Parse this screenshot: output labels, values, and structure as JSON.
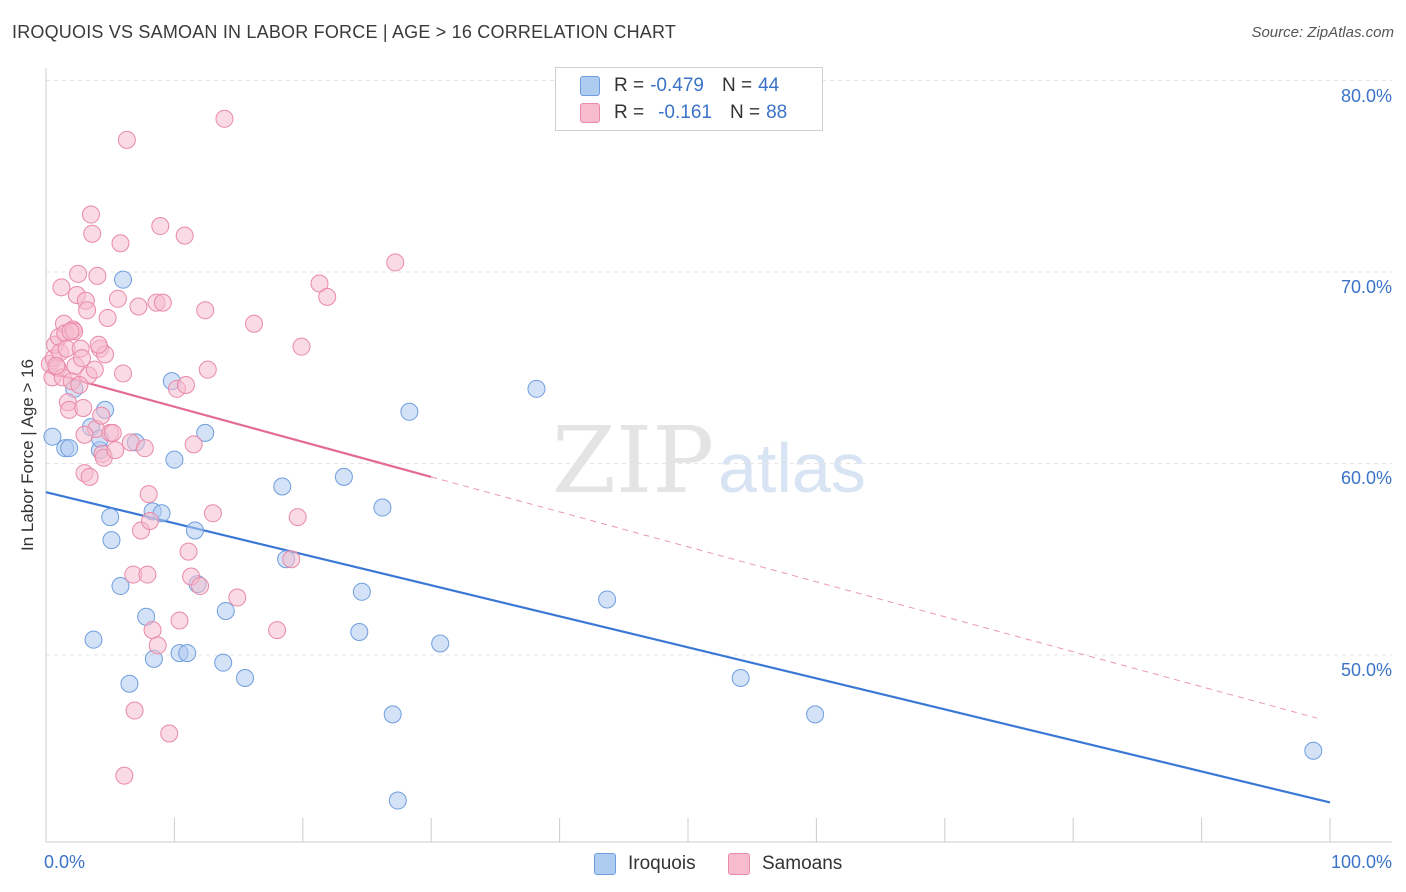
{
  "header": {
    "title": "IROQUOIS VS SAMOAN IN LABOR FORCE | AGE > 16 CORRELATION CHART",
    "source": "Source: ZipAtlas.com"
  },
  "legend": {
    "rows": [
      {
        "r_label": "R =",
        "r_value": "-0.479",
        "n_label": "N =",
        "n_value": "44",
        "color": "#aecbf0",
        "border": "#6f9ede"
      },
      {
        "r_label": "R =",
        "r_value": "-0.161",
        "n_label": "N =",
        "n_value": "88",
        "color": "#f6bccd",
        "border": "#e98aa8"
      }
    ]
  },
  "bottom_legend": {
    "iroquois": "Iroquois",
    "samoans": "Samoans"
  },
  "watermark": {
    "zip": "ZIP",
    "atlas": "atlas"
  },
  "colors": {
    "blue_fill": "#aecbf0",
    "blue_stroke": "#6f9ede",
    "blue_line": "#3b78d6",
    "pink_fill": "#f6bccd",
    "pink_stroke": "#e98aa8",
    "pink_line": "#e46b92",
    "tick_text": "#3b73c8",
    "grid": "#e5e5e5"
  },
  "chart_data": {
    "type": "scatter",
    "title": "IROQUOIS VS SAMOAN IN LABOR FORCE | AGE > 16 CORRELATION CHART",
    "xlabel": "",
    "ylabel": "In Labor Force | Age > 16",
    "xlim": [
      0,
      100
    ],
    "ylim": [
      40,
      82
    ],
    "x_tick_labels": [
      "0.0%",
      "100.0%"
    ],
    "y_ticks": [
      50,
      60,
      70,
      80
    ],
    "y_tick_labels": [
      "50.0%",
      "60.0%",
      "70.0%",
      "80.0%"
    ],
    "grid": true,
    "series": [
      {
        "name": "Iroquois",
        "r": -0.479,
        "n": 44,
        "trend": {
          "x": [
            0,
            100
          ],
          "y": [
            58.5,
            42.3
          ],
          "style": "solid"
        },
        "points": [
          [
            0.5,
            61.4
          ],
          [
            1.5,
            60.8
          ],
          [
            1.8,
            60.8
          ],
          [
            4.2,
            60.7
          ],
          [
            3.5,
            61.9
          ],
          [
            4.6,
            62.8
          ],
          [
            2.2,
            63.9
          ],
          [
            4.2,
            61.3
          ],
          [
            6.0,
            69.6
          ],
          [
            5.0,
            57.2
          ],
          [
            5.1,
            56.0
          ],
          [
            5.8,
            53.6
          ],
          [
            7.0,
            61.1
          ],
          [
            8.3,
            57.5
          ],
          [
            9.0,
            57.4
          ],
          [
            7.8,
            52.0
          ],
          [
            3.7,
            50.8
          ],
          [
            6.5,
            48.5
          ],
          [
            8.4,
            49.8
          ],
          [
            10.4,
            50.1
          ],
          [
            11.0,
            50.1
          ],
          [
            9.8,
            64.3
          ],
          [
            10.0,
            60.2
          ],
          [
            12.4,
            61.6
          ],
          [
            11.6,
            56.5
          ],
          [
            11.8,
            53.7
          ],
          [
            14.0,
            52.3
          ],
          [
            13.8,
            49.6
          ],
          [
            15.5,
            48.8
          ],
          [
            18.4,
            58.8
          ],
          [
            18.7,
            55.0
          ],
          [
            23.2,
            59.3
          ],
          [
            24.6,
            53.3
          ],
          [
            24.4,
            51.2
          ],
          [
            26.2,
            57.7
          ],
          [
            27.0,
            46.9
          ],
          [
            27.4,
            42.4
          ],
          [
            28.3,
            62.7
          ],
          [
            30.7,
            50.6
          ],
          [
            38.2,
            63.9
          ],
          [
            43.7,
            52.9
          ],
          [
            54.1,
            48.8
          ],
          [
            59.9,
            46.9
          ],
          [
            98.7,
            45.0
          ]
        ]
      },
      {
        "name": "Samoans",
        "r": -0.161,
        "n": 88,
        "trend": {
          "x": [
            0,
            30
          ],
          "y": [
            64.8,
            59.3
          ],
          "style": "solid",
          "extended_x": [
            30,
            99
          ],
          "extended_y": [
            59.3,
            46.7
          ],
          "extended_style": "dashed"
        },
        "points": [
          [
            0.3,
            65.2
          ],
          [
            0.5,
            64.5
          ],
          [
            0.6,
            65.5
          ],
          [
            0.7,
            66.2
          ],
          [
            0.9,
            65.0
          ],
          [
            1.0,
            66.6
          ],
          [
            1.1,
            65.8
          ],
          [
            1.3,
            64.5
          ],
          [
            1.2,
            69.2
          ],
          [
            1.4,
            67.3
          ],
          [
            1.5,
            66.8
          ],
          [
            1.6,
            66.0
          ],
          [
            1.7,
            63.2
          ],
          [
            1.8,
            62.8
          ],
          [
            2.0,
            64.3
          ],
          [
            2.1,
            67.0
          ],
          [
            2.2,
            66.9
          ],
          [
            2.3,
            65.1
          ],
          [
            2.4,
            68.8
          ],
          [
            2.5,
            69.9
          ],
          [
            2.7,
            66.0
          ],
          [
            2.8,
            65.5
          ],
          [
            2.9,
            62.9
          ],
          [
            3.0,
            59.5
          ],
          [
            3.1,
            68.5
          ],
          [
            3.2,
            68.0
          ],
          [
            3.3,
            64.6
          ],
          [
            3.4,
            59.3
          ],
          [
            3.5,
            73.0
          ],
          [
            3.6,
            72.0
          ],
          [
            3.8,
            64.9
          ],
          [
            3.9,
            61.8
          ],
          [
            4.0,
            69.8
          ],
          [
            4.2,
            66.0
          ],
          [
            4.3,
            62.5
          ],
          [
            4.4,
            60.5
          ],
          [
            4.5,
            60.3
          ],
          [
            4.6,
            65.7
          ],
          [
            4.8,
            67.6
          ],
          [
            5.0,
            61.6
          ],
          [
            5.2,
            61.6
          ],
          [
            5.4,
            60.7
          ],
          [
            5.6,
            68.6
          ],
          [
            5.8,
            71.5
          ],
          [
            6.0,
            64.7
          ],
          [
            6.3,
            76.9
          ],
          [
            6.6,
            61.1
          ],
          [
            6.8,
            54.2
          ],
          [
            6.9,
            47.1
          ],
          [
            7.2,
            68.2
          ],
          [
            7.4,
            56.5
          ],
          [
            7.7,
            60.8
          ],
          [
            7.9,
            54.2
          ],
          [
            8.0,
            58.4
          ],
          [
            8.1,
            57.0
          ],
          [
            8.3,
            51.3
          ],
          [
            8.6,
            68.4
          ],
          [
            8.7,
            50.5
          ],
          [
            8.9,
            72.4
          ],
          [
            9.1,
            68.4
          ],
          [
            9.6,
            45.9
          ],
          [
            10.2,
            63.9
          ],
          [
            10.4,
            51.8
          ],
          [
            10.8,
            71.9
          ],
          [
            10.9,
            64.1
          ],
          [
            11.1,
            55.4
          ],
          [
            11.3,
            54.1
          ],
          [
            11.5,
            61.0
          ],
          [
            12.0,
            53.6
          ],
          [
            12.4,
            68.0
          ],
          [
            12.6,
            64.9
          ],
          [
            13.0,
            57.4
          ],
          [
            13.9,
            78.0
          ],
          [
            14.9,
            53.0
          ],
          [
            16.2,
            67.3
          ],
          [
            18.0,
            51.3
          ],
          [
            19.1,
            55.0
          ],
          [
            19.6,
            57.2
          ],
          [
            19.9,
            66.1
          ],
          [
            21.3,
            69.4
          ],
          [
            21.9,
            68.7
          ],
          [
            27.2,
            70.5
          ],
          [
            6.1,
            43.7
          ],
          [
            3.0,
            61.5
          ],
          [
            1.9,
            66.9
          ],
          [
            0.8,
            65.1
          ],
          [
            4.1,
            66.2
          ],
          [
            2.6,
            64.1
          ]
        ]
      }
    ]
  }
}
